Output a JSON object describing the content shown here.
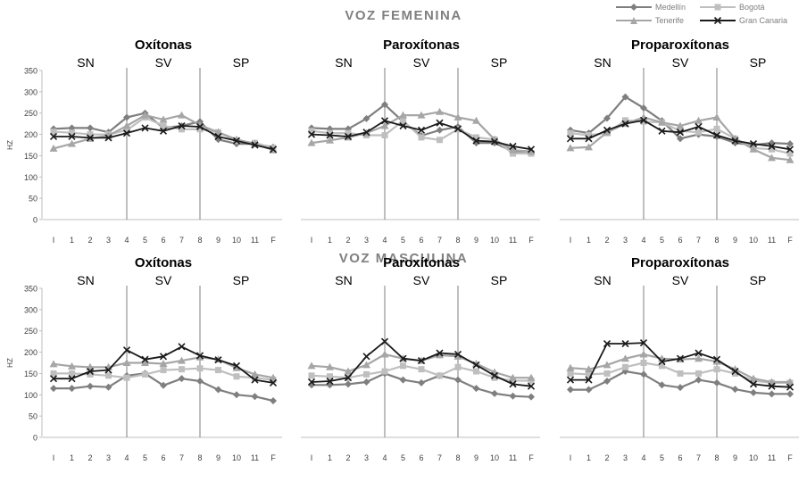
{
  "figure": {
    "sections": [
      {
        "title": "VOZ FEMENINA"
      },
      {
        "title": "VOZ MASCULINA"
      }
    ],
    "legend": [
      "Medellín",
      "Bogotá",
      "Tenerife",
      "Gran Canaria"
    ]
  },
  "colors": {
    "Medellín": "#7f7f7f",
    "Bogotá": "#bfbfbf",
    "Tenerife": "#a6a6a6",
    "Gran Canaria": "#1a1a1a",
    "axis": "#bfbfbf",
    "separator": "#7f7f7f"
  },
  "chart_data": [
    {
      "type": "line",
      "section": "VOZ FEMENINA",
      "title": "Oxítonas",
      "ylabel": "HZ",
      "ylim": [
        0,
        350
      ],
      "yticks": [
        0,
        50,
        100,
        150,
        200,
        250,
        300,
        350
      ],
      "x": [
        "I",
        "1",
        "2",
        "3",
        "4",
        "5",
        "6",
        "7",
        "8",
        "9",
        "10",
        "11",
        "F"
      ],
      "regions": [
        "SN",
        "SV",
        "SP"
      ],
      "separators_after": [
        "3",
        "7"
      ],
      "series": [
        {
          "name": "Medellín",
          "marker": "diamond",
          "values": [
            213,
            215,
            215,
            205,
            240,
            250,
            215,
            220,
            230,
            188,
            178,
            178,
            170
          ]
        },
        {
          "name": "Bogotá",
          "marker": "square",
          "values": [
            206,
            204,
            200,
            200,
            210,
            240,
            220,
            212,
            212,
            205,
            185,
            180,
            168
          ]
        },
        {
          "name": "Tenerife",
          "marker": "triangle",
          "values": [
            167,
            178,
            190,
            197,
            220,
            245,
            235,
            245,
            222,
            205,
            188,
            178,
            163
          ]
        },
        {
          "name": "Gran Canaria",
          "marker": "x",
          "values": [
            195,
            195,
            192,
            192,
            203,
            215,
            208,
            220,
            218,
            195,
            185,
            175,
            165
          ]
        }
      ]
    },
    {
      "type": "line",
      "section": "VOZ FEMENINA",
      "title": "Paroxítonas",
      "ylabel": "HZ",
      "ylim": [
        0,
        350
      ],
      "yticks": [
        0,
        50,
        100,
        150,
        200,
        250,
        300,
        350
      ],
      "x": [
        "I",
        "1",
        "2",
        "3",
        "4",
        "5",
        "6",
        "7",
        "8",
        "9",
        "10",
        "11",
        "F"
      ],
      "regions": [
        "SN",
        "SV",
        "SP"
      ],
      "separators_after": [
        "3",
        "7"
      ],
      "series": [
        {
          "name": "Medellín",
          "marker": "diamond",
          "values": [
            215,
            213,
            213,
            237,
            270,
            230,
            197,
            210,
            218,
            180,
            180,
            160,
            160
          ]
        },
        {
          "name": "Bogotá",
          "marker": "square",
          "values": [
            208,
            203,
            203,
            198,
            198,
            232,
            193,
            187,
            212,
            193,
            188,
            155,
            155
          ]
        },
        {
          "name": "Tenerife",
          "marker": "triangle",
          "values": [
            180,
            186,
            193,
            203,
            220,
            245,
            245,
            253,
            240,
            232,
            188,
            163,
            160
          ]
        },
        {
          "name": "Gran Canaria",
          "marker": "x",
          "values": [
            200,
            198,
            195,
            205,
            232,
            220,
            210,
            227,
            213,
            185,
            183,
            172,
            165
          ]
        }
      ]
    },
    {
      "type": "line",
      "section": "VOZ FEMENINA",
      "title": "Proparoxítonas",
      "ylabel": "HZ",
      "ylim": [
        0,
        350
      ],
      "yticks": [
        0,
        50,
        100,
        150,
        200,
        250,
        300,
        350
      ],
      "x": [
        "I",
        "1",
        "2",
        "3",
        "4",
        "5",
        "6",
        "7",
        "8",
        "9",
        "10",
        "11",
        "F"
      ],
      "regions": [
        "SN",
        "SV",
        "SP"
      ],
      "separators_after": [
        "3",
        "7"
      ],
      "series": [
        {
          "name": "Medellín",
          "marker": "diamond",
          "values": [
            210,
            203,
            238,
            288,
            262,
            232,
            190,
            200,
            195,
            180,
            175,
            180,
            178
          ]
        },
        {
          "name": "Bogotá",
          "marker": "square",
          "values": [
            203,
            198,
            203,
            233,
            230,
            228,
            208,
            205,
            213,
            190,
            168,
            165,
            155
          ]
        },
        {
          "name": "Tenerife",
          "marker": "triangle",
          "values": [
            168,
            170,
            205,
            225,
            240,
            228,
            220,
            232,
            240,
            190,
            165,
            145,
            140
          ]
        },
        {
          "name": "Gran Canaria",
          "marker": "x",
          "values": [
            190,
            190,
            210,
            225,
            233,
            208,
            205,
            218,
            198,
            185,
            178,
            172,
            165
          ]
        }
      ]
    },
    {
      "type": "line",
      "section": "VOZ MASCULINA",
      "title": "Oxítonas",
      "ylabel": "HZ",
      "ylim": [
        0,
        350
      ],
      "yticks": [
        0,
        50,
        100,
        150,
        200,
        250,
        300,
        350
      ],
      "x": [
        "I",
        "1",
        "2",
        "3",
        "4",
        "5",
        "6",
        "7",
        "8",
        "9",
        "10",
        "11",
        "F"
      ],
      "regions": [
        "SN",
        "SV",
        "SP"
      ],
      "separators_after": [
        "3",
        "7"
      ],
      "series": [
        {
          "name": "Medellín",
          "marker": "diamond",
          "values": [
            115,
            115,
            120,
            118,
            145,
            150,
            122,
            138,
            132,
            112,
            100,
            96,
            86
          ]
        },
        {
          "name": "Bogotá",
          "marker": "square",
          "values": [
            150,
            150,
            148,
            145,
            140,
            148,
            158,
            160,
            162,
            158,
            143,
            140,
            135
          ]
        },
        {
          "name": "Tenerife",
          "marker": "triangle",
          "values": [
            172,
            167,
            165,
            165,
            175,
            175,
            173,
            180,
            188,
            183,
            163,
            148,
            140
          ]
        },
        {
          "name": "Gran Canaria",
          "marker": "x",
          "values": [
            138,
            138,
            155,
            158,
            205,
            183,
            190,
            213,
            192,
            182,
            168,
            135,
            128
          ]
        }
      ]
    },
    {
      "type": "line",
      "section": "VOZ MASCULINA",
      "title": "Paroxítonas",
      "ylabel": "HZ",
      "ylim": [
        0,
        350
      ],
      "yticks": [
        0,
        50,
        100,
        150,
        200,
        250,
        300,
        350
      ],
      "x": [
        "I",
        "1",
        "2",
        "3",
        "4",
        "5",
        "6",
        "7",
        "8",
        "9",
        "10",
        "11",
        "F"
      ],
      "regions": [
        "SN",
        "SV",
        "SP"
      ],
      "separators_after": [
        "3",
        "7"
      ],
      "series": [
        {
          "name": "Medellín",
          "marker": "diamond",
          "values": [
            123,
            123,
            125,
            130,
            150,
            135,
            128,
            145,
            135,
            115,
            103,
            97,
            95
          ]
        },
        {
          "name": "Bogotá",
          "marker": "square",
          "values": [
            145,
            143,
            140,
            148,
            155,
            168,
            160,
            145,
            165,
            155,
            140,
            133,
            133
          ]
        },
        {
          "name": "Tenerife",
          "marker": "triangle",
          "values": [
            168,
            165,
            155,
            170,
            195,
            185,
            180,
            193,
            190,
            173,
            153,
            140,
            140
          ]
        },
        {
          "name": "Gran Canaria",
          "marker": "x",
          "values": [
            130,
            132,
            140,
            190,
            225,
            185,
            180,
            198,
            195,
            170,
            145,
            125,
            120
          ]
        }
      ]
    },
    {
      "type": "line",
      "section": "VOZ MASCULINA",
      "title": "Proparoxítonas",
      "ylabel": "HZ",
      "ylim": [
        0,
        350
      ],
      "yticks": [
        0,
        50,
        100,
        150,
        200,
        250,
        300,
        350
      ],
      "x": [
        "I",
        "1",
        "2",
        "3",
        "4",
        "5",
        "6",
        "7",
        "8",
        "9",
        "10",
        "11",
        "F"
      ],
      "regions": [
        "SN",
        "SV",
        "SP"
      ],
      "separators_after": [
        "3",
        "7"
      ],
      "series": [
        {
          "name": "Medellín",
          "marker": "diamond",
          "values": [
            112,
            112,
            132,
            155,
            148,
            123,
            117,
            135,
            128,
            113,
            105,
            102,
            102
          ]
        },
        {
          "name": "Bogotá",
          "marker": "square",
          "values": [
            150,
            148,
            150,
            165,
            175,
            168,
            150,
            150,
            160,
            150,
            133,
            128,
            128
          ]
        },
        {
          "name": "Tenerife",
          "marker": "triangle",
          "values": [
            163,
            160,
            170,
            185,
            195,
            185,
            183,
            185,
            178,
            160,
            138,
            130,
            130
          ]
        },
        {
          "name": "Gran Canaria",
          "marker": "x",
          "values": [
            135,
            135,
            220,
            220,
            222,
            178,
            185,
            198,
            183,
            155,
            125,
            120,
            118
          ]
        }
      ]
    }
  ]
}
